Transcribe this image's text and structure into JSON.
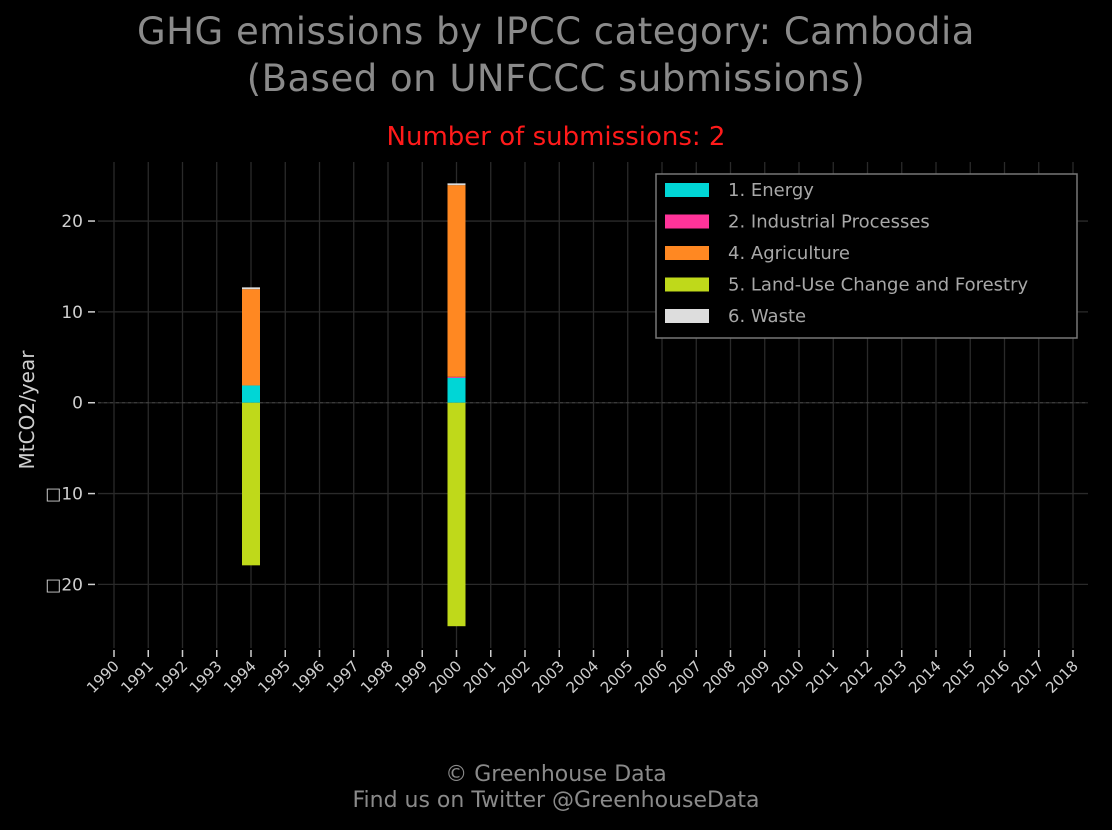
{
  "title_line1": "GHG emissions by IPCC category: Cambodia",
  "title_line2": "(Based on UNFCCC submissions)",
  "subtitle": "Number of submissions: 2",
  "footer_line1": "© Greenhouse Data",
  "footer_line2": "Find us on Twitter @GreenhouseData",
  "colors": {
    "background": "#000000",
    "title": "#8a8a8a",
    "subtitle": "#ff1a1a",
    "grid": "#2a2a2a",
    "axis_text": "#cfcfcf",
    "legend_text": "#a8a8a8",
    "legend_border": "#777777"
  },
  "chart_data": {
    "type": "bar",
    "stacked": true,
    "ylabel": "MtCO2/year",
    "xlabel": "",
    "ylim": [
      -27,
      26.5
    ],
    "yticks": [
      -20,
      -10,
      0,
      10,
      20
    ],
    "ytick_labels": [
      "□20",
      "□10",
      "0",
      "10",
      "20"
    ],
    "x": [
      1990,
      1991,
      1992,
      1993,
      1994,
      1995,
      1996,
      1997,
      1998,
      1999,
      2000,
      2001,
      2002,
      2003,
      2004,
      2005,
      2006,
      2007,
      2008,
      2009,
      2010,
      2011,
      2012,
      2013,
      2014,
      2015,
      2016,
      2017,
      2018
    ],
    "grid": true,
    "legend_position": "top-right",
    "series": [
      {
        "name": "1. Energy",
        "color": "#00d6d6",
        "values": {
          "1994": 1.9,
          "2000": 2.8
        }
      },
      {
        "name": "2. Industrial Processes",
        "color": "#ff3399",
        "values": {
          "1994": 0.0,
          "2000": 0.05
        }
      },
      {
        "name": "4. Agriculture",
        "color": "#ff8822",
        "values": {
          "1994": 10.6,
          "2000": 21.1
        }
      },
      {
        "name": "5. Land-Use Change and Forestry",
        "color": "#bfd91a",
        "values": {
          "1994": -17.9,
          "2000": -24.6
        }
      },
      {
        "name": "6. Waste",
        "color": "#dddddd",
        "values": {
          "1994": 0.2,
          "2000": 0.2
        }
      }
    ]
  }
}
